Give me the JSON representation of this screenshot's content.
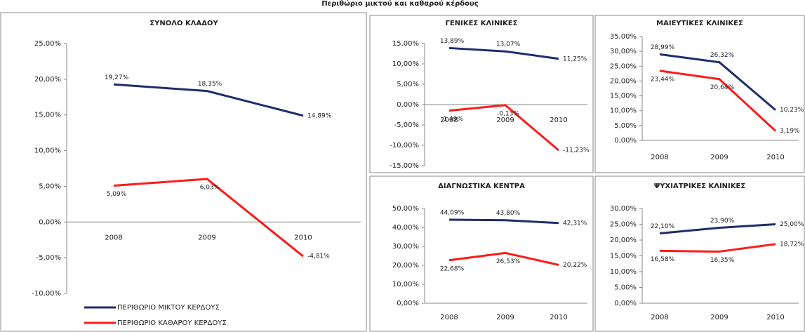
{
  "title": "Περιθώριο μικτού και καθαρού κέρδους",
  "chart_data": [
    {
      "type": "line",
      "title": "ΣΥΝΟΛΟ ΚΛΑΔΟΥ",
      "categories": [
        "2008",
        "2009",
        "2010"
      ],
      "series": [
        {
          "name": "ΠΕΡΙΘΩΡΙΟ ΜΙΚΤΟΥ ΚΕΡΔΟΥΣ",
          "color": "#1f2d6b",
          "values": [
            19.27,
            18.35,
            14.89
          ],
          "value_labels": [
            "19,27%",
            "18,35%",
            "14,89%"
          ]
        },
        {
          "name": "ΠΕΡΙΘΩΡΙΟ ΚΑΘΑΡΟΥ ΚΕΡΔΟΥΣ",
          "color": "#ff1a1a",
          "values": [
            5.09,
            6.03,
            -4.81
          ],
          "value_labels": [
            "5,09%",
            "6,03%",
            "-4,81%"
          ]
        }
      ],
      "ylim": [
        -10,
        25
      ],
      "yticks": [
        {
          "value": -10,
          "label": "-10,00%"
        },
        {
          "value": -5,
          "label": "-5,00%"
        },
        {
          "value": 0,
          "label": "0,00%"
        },
        {
          "value": 5,
          "label": "5,00%"
        },
        {
          "value": 10,
          "label": "10,00%"
        },
        {
          "value": 15,
          "label": "15,00%"
        },
        {
          "value": 20,
          "label": "20,00%"
        },
        {
          "value": 25,
          "label": "25,00%"
        }
      ],
      "legend": "bottom"
    },
    {
      "type": "line",
      "title": "ΓΕΝΙΚΕΣ ΚΛΙΝΙΚΕΣ",
      "categories": [
        "2008",
        "2009",
        "2010"
      ],
      "series": [
        {
          "color": "#1f2d6b",
          "values": [
            13.89,
            13.07,
            11.25
          ],
          "value_labels": [
            "13,89%",
            "13,07%",
            "11,25%"
          ]
        },
        {
          "color": "#ff1a1a",
          "values": [
            -1.49,
            -0.13,
            -11.23
          ],
          "value_labels": [
            "-1,49%",
            "-0,13%",
            "-11,23%"
          ]
        }
      ],
      "ylim": [
        -15,
        15
      ],
      "yticks": [
        {
          "value": -15,
          "label": "-15,00%"
        },
        {
          "value": -10,
          "label": "-10,00%"
        },
        {
          "value": -5,
          "label": "-5,00%"
        },
        {
          "value": 0,
          "label": "0,00%"
        },
        {
          "value": 5,
          "label": "5,00%"
        },
        {
          "value": 10,
          "label": "10,00%"
        },
        {
          "value": 15,
          "label": "15,00%"
        }
      ]
    },
    {
      "type": "line",
      "title": "ΜΑΙΕΥΤΙΚΕΣ ΚΛΙΝΙΚΕΣ",
      "categories": [
        "2008",
        "2009",
        "2010"
      ],
      "series": [
        {
          "color": "#1f2d6b",
          "values": [
            28.99,
            26.32,
            10.23
          ],
          "value_labels": [
            "28,99%",
            "26,32%",
            "10,23%"
          ]
        },
        {
          "color": "#ff1a1a",
          "values": [
            23.44,
            20.64,
            3.19
          ],
          "value_labels": [
            "23,44%",
            "20,64%",
            "3,19%"
          ]
        }
      ],
      "ylim": [
        0,
        35
      ],
      "yticks": [
        {
          "value": 0,
          "label": "0,00%"
        },
        {
          "value": 5,
          "label": "5,00%"
        },
        {
          "value": 10,
          "label": "10,00%"
        },
        {
          "value": 15,
          "label": "15,00%"
        },
        {
          "value": 20,
          "label": "20,00%"
        },
        {
          "value": 25,
          "label": "25,00%"
        },
        {
          "value": 30,
          "label": "30,00%"
        },
        {
          "value": 35,
          "label": "35,00%"
        }
      ]
    },
    {
      "type": "line",
      "title": "ΔΙΑΓΝΩΣΤΙΚΑ ΚΕΝΤΡΑ",
      "categories": [
        "2008",
        "2009",
        "2010"
      ],
      "series": [
        {
          "color": "#1f2d6b",
          "values": [
            44.09,
            43.8,
            42.31
          ],
          "value_labels": [
            "44,09%",
            "43,80%",
            "42,31%"
          ]
        },
        {
          "color": "#ff1a1a",
          "values": [
            22.68,
            26.53,
            20.22
          ],
          "value_labels": [
            "22,68%",
            "26,53%",
            "20,22%"
          ]
        }
      ],
      "ylim": [
        0,
        50
      ],
      "yticks": [
        {
          "value": 0,
          "label": "0,00%"
        },
        {
          "value": 10,
          "label": "10,00%"
        },
        {
          "value": 20,
          "label": "20,00%"
        },
        {
          "value": 30,
          "label": "30,00%"
        },
        {
          "value": 40,
          "label": "40,00%"
        },
        {
          "value": 50,
          "label": "50,00%"
        }
      ]
    },
    {
      "type": "line",
      "title": "ΨΥΧΙΑΤΡΙΚΕΣ ΚΛΙΝΙΚΕΣ",
      "categories": [
        "2008",
        "2009",
        "2010"
      ],
      "series": [
        {
          "color": "#1f2d6b",
          "values": [
            22.1,
            23.9,
            25.0
          ],
          "value_labels": [
            "22,10%",
            "23,90%",
            "25,00%"
          ]
        },
        {
          "color": "#ff1a1a",
          "values": [
            16.58,
            16.35,
            18.72
          ],
          "value_labels": [
            "16,58%",
            "16,35%",
            "18,72%"
          ]
        }
      ],
      "ylim": [
        0,
        30
      ],
      "yticks": [
        {
          "value": 0,
          "label": "0,00%"
        },
        {
          "value": 5,
          "label": "5,00%"
        },
        {
          "value": 10,
          "label": "10,00%"
        },
        {
          "value": 15,
          "label": "15,00%"
        },
        {
          "value": 20,
          "label": "20,00%"
        },
        {
          "value": 25,
          "label": "25,00%"
        },
        {
          "value": 30,
          "label": "30,00%"
        }
      ]
    }
  ]
}
